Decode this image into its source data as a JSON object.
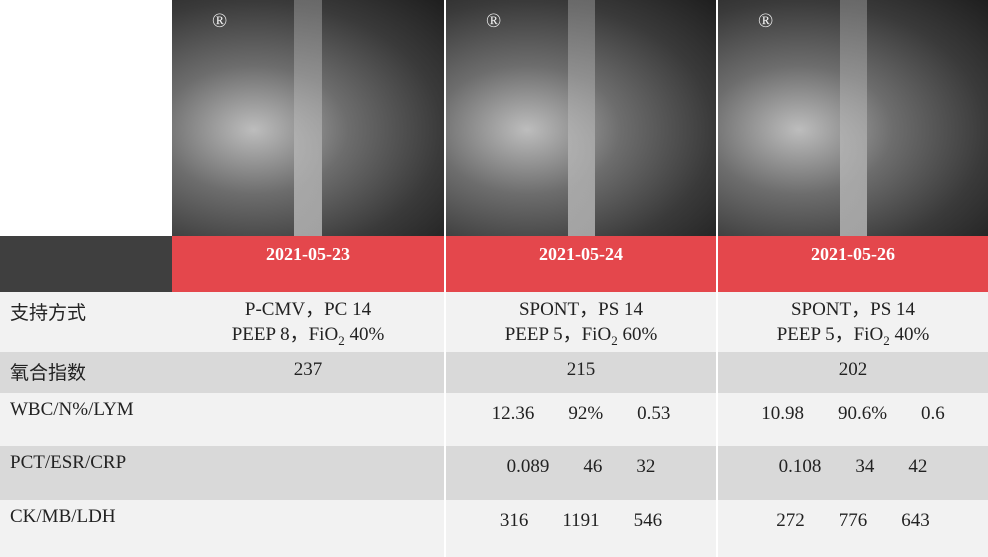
{
  "images": [
    {
      "mark": "®"
    },
    {
      "mark": "®"
    },
    {
      "mark": "®"
    }
  ],
  "table": {
    "header": [
      "2021-05-23",
      "2021-05-24",
      "2021-05-26"
    ],
    "rows": [
      {
        "label": "支持方式",
        "cells": [
          {
            "line1": "P-CMV，PC 14",
            "pre": "PEEP 8，FiO",
            "sub": "2",
            "post": " 40%"
          },
          {
            "line1": "SPONT，PS 14",
            "pre": "PEEP 5，FiO",
            "sub": "2",
            "post": " 60%"
          },
          {
            "line1": "SPONT，PS 14",
            "pre": "PEEP 5，FiO",
            "sub": "2",
            "post": " 40%"
          }
        ]
      },
      {
        "label": "氧合指数",
        "cells": [
          "237",
          "215",
          "202"
        ]
      },
      {
        "label": "WBC/N%/LYM",
        "cells": [
          [],
          [
            "12.36",
            "92%",
            "0.53"
          ],
          [
            "10.98",
            "90.6%",
            "0.6"
          ]
        ]
      },
      {
        "label": "PCT/ESR/CRP",
        "cells": [
          [],
          [
            "0.089",
            "46",
            "32"
          ],
          [
            "0.108",
            "34",
            "42"
          ]
        ]
      },
      {
        "label": "CK/MB/LDH",
        "cells": [
          [],
          [
            "316",
            "1191",
            "546"
          ],
          [
            "272",
            "776",
            "643"
          ]
        ]
      }
    ]
  }
}
